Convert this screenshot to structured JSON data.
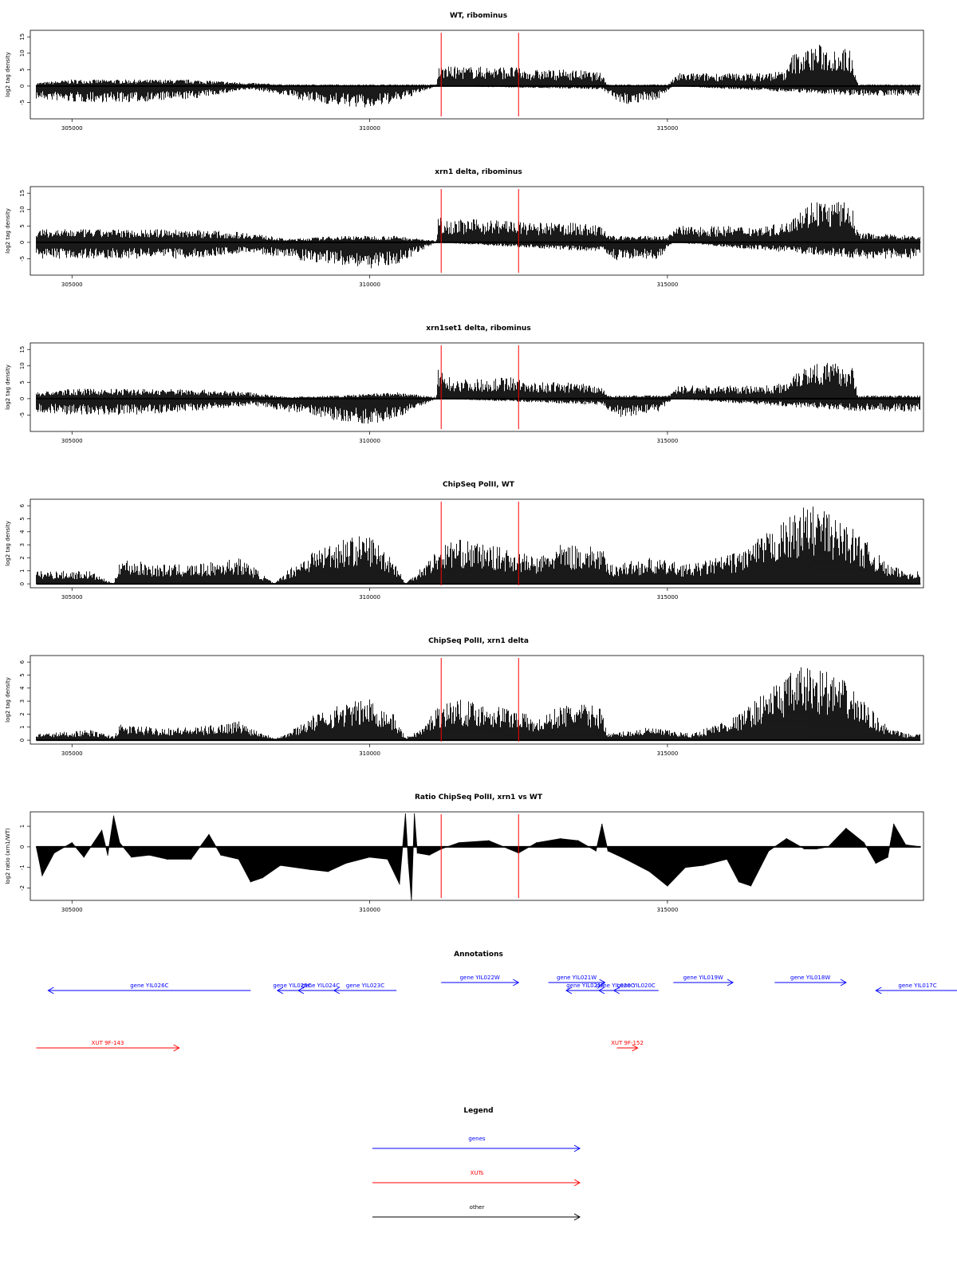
{
  "chart_data": [
    {
      "type": "area",
      "title": "WT, ribominus",
      "ylabel": "log2 tag density",
      "xlim": [
        304300,
        319300
      ],
      "ylim": [
        -10,
        17
      ],
      "yticks": [
        -5,
        0,
        5,
        10,
        15
      ],
      "xticks": [
        305000,
        310000,
        315000
      ],
      "markers_x": [
        311200,
        312500
      ],
      "series": [
        {
          "x": [
            304400,
            308000,
            308600,
            310450,
            310450,
            311120,
            311150,
            313900,
            313900,
            314850,
            315100,
            317100,
            317100,
            317900,
            318200,
            319250
          ],
          "values": [
            0,
            0,
            0,
            0,
            0,
            0,
            0,
            0,
            0,
            0,
            0,
            0,
            0,
            0,
            0,
            0
          ]
        }
      ],
      "envelope": {
        "positive": {
          "x": [
            304400,
            305000,
            306000,
            307000,
            308000,
            308600,
            310450,
            311120,
            311150,
            311400,
            312000,
            312400,
            312600,
            313000,
            313500,
            313900,
            314000,
            315000,
            315200,
            316000,
            316600,
            317000,
            317100,
            317300,
            317500,
            317700,
            317900,
            318100,
            318200,
            319250
          ],
          "values": [
            1,
            2,
            2,
            2,
            1,
            0.5,
            0.5,
            0.5,
            6,
            6,
            6,
            6,
            5,
            5,
            5,
            4,
            0.5,
            0.5,
            4,
            4,
            4,
            5,
            10,
            11,
            13,
            12,
            12,
            11,
            0.5,
            0.5
          ]
        },
        "negative": {
          "x": [
            304400,
            305000,
            306000,
            307000,
            308000,
            308600,
            309000,
            309500,
            310000,
            310450,
            311120,
            313900,
            314200,
            314850,
            315100,
            318200,
            319250
          ],
          "values": [
            -4,
            -5,
            -5,
            -4,
            -1,
            -3,
            -5,
            -6,
            -7,
            -5,
            0,
            -1,
            -6,
            -4,
            0,
            -3,
            -3
          ]
        }
      }
    },
    {
      "type": "area",
      "title": "xrn1 delta, ribominus",
      "ylabel": "log2 tag density",
      "xlim": [
        304300,
        319300
      ],
      "ylim": [
        -10,
        17
      ],
      "yticks": [
        -5,
        0,
        5,
        10,
        15
      ],
      "xticks": [
        305000,
        310000,
        315000
      ],
      "markers_x": [
        311200,
        312500
      ],
      "envelope": {
        "positive": {
          "x": [
            304400,
            305000,
            306000,
            307000,
            308000,
            308600,
            309500,
            310450,
            311120,
            311150,
            311400,
            312000,
            312400,
            312600,
            313000,
            313500,
            313900,
            314000,
            315000,
            315200,
            316000,
            316600,
            317000,
            317100,
            317300,
            317500,
            317700,
            317900,
            318100,
            318200,
            319250
          ],
          "values": [
            4,
            4,
            4,
            4,
            3,
            1,
            2,
            2,
            0.5,
            8,
            7,
            7,
            7,
            6,
            6,
            6,
            5,
            2,
            2,
            5,
            5,
            5,
            6,
            10,
            11,
            14,
            12,
            13,
            11,
            3,
            2
          ]
        },
        "negative": {
          "x": [
            304400,
            305000,
            306000,
            307000,
            308000,
            308600,
            309000,
            309500,
            310000,
            310450,
            311120,
            313900,
            314200,
            314850,
            315100,
            318200,
            319250
          ],
          "values": [
            -5,
            -5,
            -5,
            -5,
            -3,
            -5,
            -6,
            -7,
            -8,
            -7,
            0,
            -3,
            -6,
            -5,
            0,
            -5,
            -5
          ]
        }
      }
    },
    {
      "type": "area",
      "title": "xrn1set1 delta, ribominus",
      "ylabel": "log2 tag density",
      "xlim": [
        304300,
        319300
      ],
      "ylim": [
        -10,
        17
      ],
      "yticks": [
        -5,
        0,
        5,
        10,
        15
      ],
      "xticks": [
        305000,
        310000,
        315000
      ],
      "markers_x": [
        311200,
        312500
      ],
      "envelope": {
        "positive": {
          "x": [
            304400,
            305000,
            306000,
            307000,
            308000,
            308600,
            309500,
            310450,
            311120,
            311150,
            311400,
            312000,
            312400,
            312600,
            313000,
            313500,
            313900,
            314000,
            315000,
            315200,
            316000,
            316600,
            317000,
            317100,
            317300,
            317500,
            317700,
            317900,
            318100,
            318200,
            319250
          ],
          "values": [
            2,
            3,
            3,
            3,
            2,
            0.5,
            1,
            2,
            0.5,
            9,
            6,
            6,
            7,
            5,
            5,
            5,
            4,
            1,
            1,
            4,
            4,
            4,
            5,
            9,
            10,
            12,
            11,
            11,
            10,
            1,
            1
          ]
        },
        "negative": {
          "x": [
            304400,
            305000,
            306000,
            307000,
            308000,
            308600,
            309000,
            309500,
            310000,
            310450,
            311120,
            313900,
            314200,
            314850,
            315100,
            318200,
            319250
          ],
          "values": [
            -4,
            -5,
            -5,
            -4,
            -2,
            -4,
            -5,
            -7,
            -8,
            -6,
            0,
            -2,
            -6,
            -4,
            0,
            -4,
            -4
          ]
        }
      }
    },
    {
      "type": "area",
      "title": "ChipSeq PolII, WT",
      "ylabel": "log2 tag density",
      "xlim": [
        304300,
        319300
      ],
      "ylim": [
        -0.3,
        6.5
      ],
      "yticks": [
        0,
        1,
        2,
        3,
        4,
        5,
        6
      ],
      "xticks": [
        305000,
        310000,
        315000
      ],
      "markers_x": [
        311200,
        312500
      ],
      "envelope": {
        "positive": {
          "x": [
            304400,
            305300,
            305700,
            305800,
            306400,
            307100,
            307800,
            308000,
            308400,
            308600,
            309000,
            309500,
            310000,
            310400,
            310600,
            310900,
            311100,
            311400,
            312000,
            312500,
            312800,
            313200,
            313600,
            313900,
            314000,
            314700,
            315400,
            316200,
            316700,
            317000,
            317300,
            317600,
            317800,
            318000,
            318400,
            318700,
            319000,
            319250
          ],
          "values": [
            1,
            1,
            0,
            2,
            1.5,
            1.5,
            2,
            1.5,
            0,
            1,
            2.5,
            3.5,
            3.8,
            2,
            0,
            1.5,
            2.5,
            3.5,
            3,
            2.5,
            2,
            3,
            3,
            2.8,
            1.5,
            2,
            1.5,
            2.5,
            4,
            5,
            6,
            6,
            5,
            4.8,
            3,
            1.5,
            1,
            1
          ]
        }
      }
    },
    {
      "type": "area",
      "title": "ChipSeq PolII, xrn1 delta",
      "ylabel": "log2 tag density",
      "xlim": [
        304300,
        319300
      ],
      "ylim": [
        -0.3,
        6.5
      ],
      "yticks": [
        0,
        1,
        2,
        3,
        4,
        5,
        6
      ],
      "xticks": [
        305000,
        310000,
        315000
      ],
      "markers_x": [
        311200,
        312500
      ],
      "envelope": {
        "positive": {
          "x": [
            304400,
            305300,
            305700,
            305800,
            306400,
            307100,
            307800,
            308000,
            308400,
            308600,
            309000,
            309500,
            310000,
            310400,
            310600,
            310900,
            311100,
            311400,
            312000,
            312500,
            312800,
            313200,
            313600,
            313900,
            314000,
            314700,
            315400,
            316200,
            316700,
            317000,
            317300,
            317600,
            317800,
            318000,
            318400,
            318700,
            319000,
            319250
          ],
          "values": [
            0.5,
            0.8,
            0.3,
            1.2,
            1,
            1,
            1.5,
            1,
            0.2,
            0.5,
            1.8,
            2.8,
            3.2,
            2,
            0.2,
            1,
            2.5,
            3.2,
            2.8,
            2.4,
            1.5,
            2.7,
            2.8,
            2.5,
            0.5,
            1,
            0.5,
            2,
            4,
            5,
            5.8,
            5.6,
            5,
            4.5,
            2.5,
            1,
            0.5,
            0.5
          ]
        }
      }
    },
    {
      "type": "area",
      "title": "Ratio ChipSeq PolII, xrn1 vs WT",
      "ylabel": "log2 ratio (xrn1/WT)",
      "xlim": [
        304300,
        319300
      ],
      "ylim": [
        -2.6,
        1.7
      ],
      "yticks": [
        -2,
        -1,
        0,
        1
      ],
      "xticks": [
        305000,
        310000,
        315000
      ],
      "markers_x": [
        311200,
        312500
      ],
      "series": [
        {
          "name": "",
          "x": [
            304400,
            304500,
            304700,
            305000,
            305200,
            305500,
            305600,
            305700,
            305800,
            306000,
            306300,
            306600,
            307000,
            307300,
            307500,
            307800,
            308000,
            308200,
            308500,
            309000,
            309300,
            309600,
            310000,
            310300,
            310500,
            310600,
            310650,
            310700,
            310750,
            310800,
            311000,
            311200,
            311500,
            312000,
            312500,
            312800,
            313200,
            313500,
            313800,
            313900,
            314000,
            314300,
            314700,
            315000,
            315300,
            315600,
            316000,
            316200,
            316400,
            316700,
            317000,
            317300,
            317500,
            317700,
            318000,
            318300,
            318500,
            318700,
            318800,
            319000,
            319250
          ],
          "values": [
            0,
            -1.4,
            -0.3,
            0.2,
            -0.5,
            0.8,
            -0.4,
            1.5,
            0.2,
            -0.5,
            -0.4,
            -0.6,
            -0.6,
            0.6,
            -0.4,
            -0.6,
            -1.7,
            -1.5,
            -0.9,
            -1.1,
            -1.2,
            -0.8,
            -0.5,
            -0.6,
            -1.8,
            1.6,
            -0.8,
            -2.6,
            1.6,
            -0.3,
            -0.4,
            -0.1,
            0.2,
            0.3,
            -0.3,
            0.2,
            0.4,
            0.3,
            -0.2,
            1.1,
            -0.2,
            -0.6,
            -1.2,
            -1.9,
            -1.0,
            -0.9,
            -0.6,
            -1.7,
            -1.9,
            -0.2,
            0.4,
            -0.1,
            -0.1,
            0,
            0.9,
            0.2,
            -0.8,
            -0.5,
            1.1,
            0.1,
            0
          ]
        }
      ]
    }
  ],
  "annotations": {
    "title": "Annotations",
    "genes": [
      {
        "label": "gene YIL026C",
        "start": 308000,
        "end": 304600,
        "dir": "left",
        "row": 1
      },
      {
        "label": "gene YIL025C",
        "start": 308950,
        "end": 308450,
        "dir": "left",
        "row": 1
      },
      {
        "label": "gene YIL024C",
        "start": 309550,
        "end": 308800,
        "dir": "left",
        "row": 1
      },
      {
        "label": "gene YIL023C",
        "start": 310450,
        "end": 309400,
        "dir": "left",
        "row": 1
      },
      {
        "label": "gene YIL022W",
        "start": 311200,
        "end": 312500,
        "dir": "right",
        "row": 0
      },
      {
        "label": "gene YIL021W",
        "start": 313000,
        "end": 313950,
        "dir": "right",
        "row": 0
      },
      {
        "label": "gene YIL021B",
        "start": 313950,
        "end": 313300,
        "dir": "left",
        "row": 1
      },
      {
        "label": "gene YIL020C",
        "start": 314400,
        "end": 313850,
        "dir": "left",
        "row": 1
      },
      {
        "label": "gene YIL020C",
        "start": 314850,
        "end": 314100,
        "dir": "left",
        "row": 1
      },
      {
        "label": "gene YIL019W",
        "start": 315100,
        "end": 316100,
        "dir": "right",
        "row": 0
      },
      {
        "label": "gene YIL018W",
        "start": 316800,
        "end": 318000,
        "dir": "right",
        "row": 0
      },
      {
        "label": "gene YIL017C",
        "start": 319900,
        "end": 318500,
        "dir": "left",
        "row": 1
      }
    ],
    "xuts": [
      {
        "label": "XUT 9F-143",
        "start": 304400,
        "end": 306800,
        "dir": "right"
      },
      {
        "label": "XUT 9F-152",
        "start": 314150,
        "end": 314500,
        "dir": "right"
      }
    ]
  },
  "legend": {
    "title": "Legend",
    "items": [
      {
        "label": "genes",
        "color": "#0000ff"
      },
      {
        "label": "XUTs",
        "color": "#ff0000"
      },
      {
        "label": "other",
        "color": "#000000"
      }
    ]
  },
  "colors": {
    "marker": "#ff0000",
    "gene": "#0000ff",
    "xut": "#ff0000",
    "bars": "#000000",
    "frame": "#000000"
  }
}
